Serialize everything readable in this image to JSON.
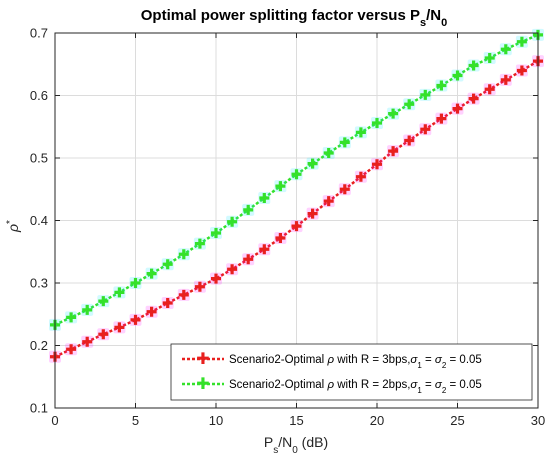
{
  "chart_data": {
    "type": "line",
    "title": {
      "main": "Optimal power splitting factor versus P",
      "sub1": "s",
      "mid": "/N",
      "sub2": "0"
    },
    "xlabel": {
      "main": "P",
      "sub1": "s",
      "mid": "/N",
      "sub2": "0",
      "tail": " (dB)"
    },
    "ylabel": {
      "main": "ρ",
      "sup": "*"
    },
    "xlim": [
      0,
      30
    ],
    "ylim": [
      0.1,
      0.7
    ],
    "xticks": [
      0,
      5,
      10,
      15,
      20,
      25,
      30
    ],
    "yticks": [
      0.1,
      0.2,
      0.3,
      0.4,
      0.5,
      0.6,
      0.7
    ],
    "grid": true,
    "legend_position": "bottom-right",
    "x": [
      0,
      1,
      2,
      3,
      4,
      5,
      6,
      7,
      8,
      9,
      10,
      11,
      12,
      13,
      14,
      15,
      16,
      17,
      18,
      19,
      20,
      21,
      22,
      23,
      24,
      25,
      26,
      27,
      28,
      29,
      30
    ],
    "series": [
      {
        "name": {
          "a": "Scenario2-Optimal ",
          "rho": "ρ",
          "b": " with R = 3bps,",
          "sigma1": "σ",
          "sub1": "1",
          "eq": " = ",
          "sigma2": "σ",
          "sub2": "2",
          "c": " = 0.05"
        },
        "color": "#e8201e",
        "glow": "#ff00ff",
        "values": [
          0.182,
          0.194,
          0.206,
          0.218,
          0.229,
          0.241,
          0.254,
          0.268,
          0.281,
          0.294,
          0.307,
          0.322,
          0.338,
          0.354,
          0.372,
          0.391,
          0.411,
          0.431,
          0.45,
          0.47,
          0.49,
          0.511,
          0.528,
          0.546,
          0.563,
          0.579,
          0.595,
          0.61,
          0.625,
          0.64,
          0.655
        ]
      },
      {
        "name": {
          "a": "Scenario2-Optimal ",
          "rho": "ρ",
          "b": " with R = 2bps,",
          "sigma1": "σ",
          "sub1": "1",
          "eq": " = ",
          "sigma2": "σ",
          "sub2": "2",
          "c": " = 0.05"
        },
        "color": "#34e12a",
        "glow": "#00e5ff",
        "values": [
          0.233,
          0.245,
          0.257,
          0.271,
          0.285,
          0.3,
          0.315,
          0.33,
          0.346,
          0.363,
          0.38,
          0.398,
          0.417,
          0.436,
          0.455,
          0.474,
          0.491,
          0.508,
          0.525,
          0.541,
          0.556,
          0.571,
          0.586,
          0.601,
          0.616,
          0.632,
          0.648,
          0.66,
          0.674,
          0.686,
          0.697
        ]
      }
    ]
  }
}
